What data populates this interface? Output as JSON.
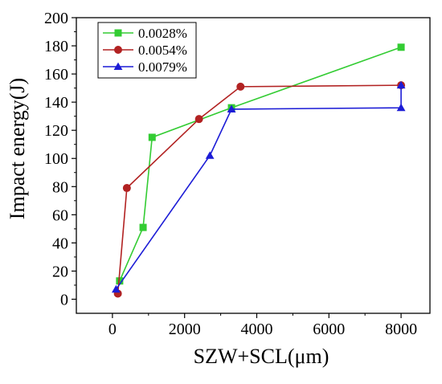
{
  "chart_data": {
    "type": "line",
    "title": "",
    "xlabel": "SZW+SCL(μm)",
    "ylabel": "Impact energy(J)",
    "xlim": [
      -1000,
      8800
    ],
    "ylim": [
      -10,
      200
    ],
    "xticks": [
      0,
      2000,
      4000,
      6000,
      8000
    ],
    "yticks": [
      0,
      20,
      40,
      60,
      80,
      100,
      120,
      140,
      160,
      180,
      200
    ],
    "grid": false,
    "legend_position": "top-left",
    "series": [
      {
        "name": "0.0028%",
        "color": "#33cc33",
        "marker": "square",
        "x": [
          200,
          850,
          1100,
          3300,
          8000
        ],
        "y": [
          13,
          51,
          115,
          136,
          179
        ]
      },
      {
        "name": "0.0054%",
        "color": "#b22222",
        "marker": "circle",
        "x": [
          150,
          400,
          2400,
          3550,
          8000
        ],
        "y": [
          4,
          79,
          128,
          151,
          152
        ]
      },
      {
        "name": "0.0079%",
        "color": "#1c1cd6",
        "marker": "triangle",
        "x": [
          100,
          2700,
          3300,
          8000,
          8000
        ],
        "y": [
          7,
          102,
          135,
          136,
          152
        ]
      }
    ]
  }
}
